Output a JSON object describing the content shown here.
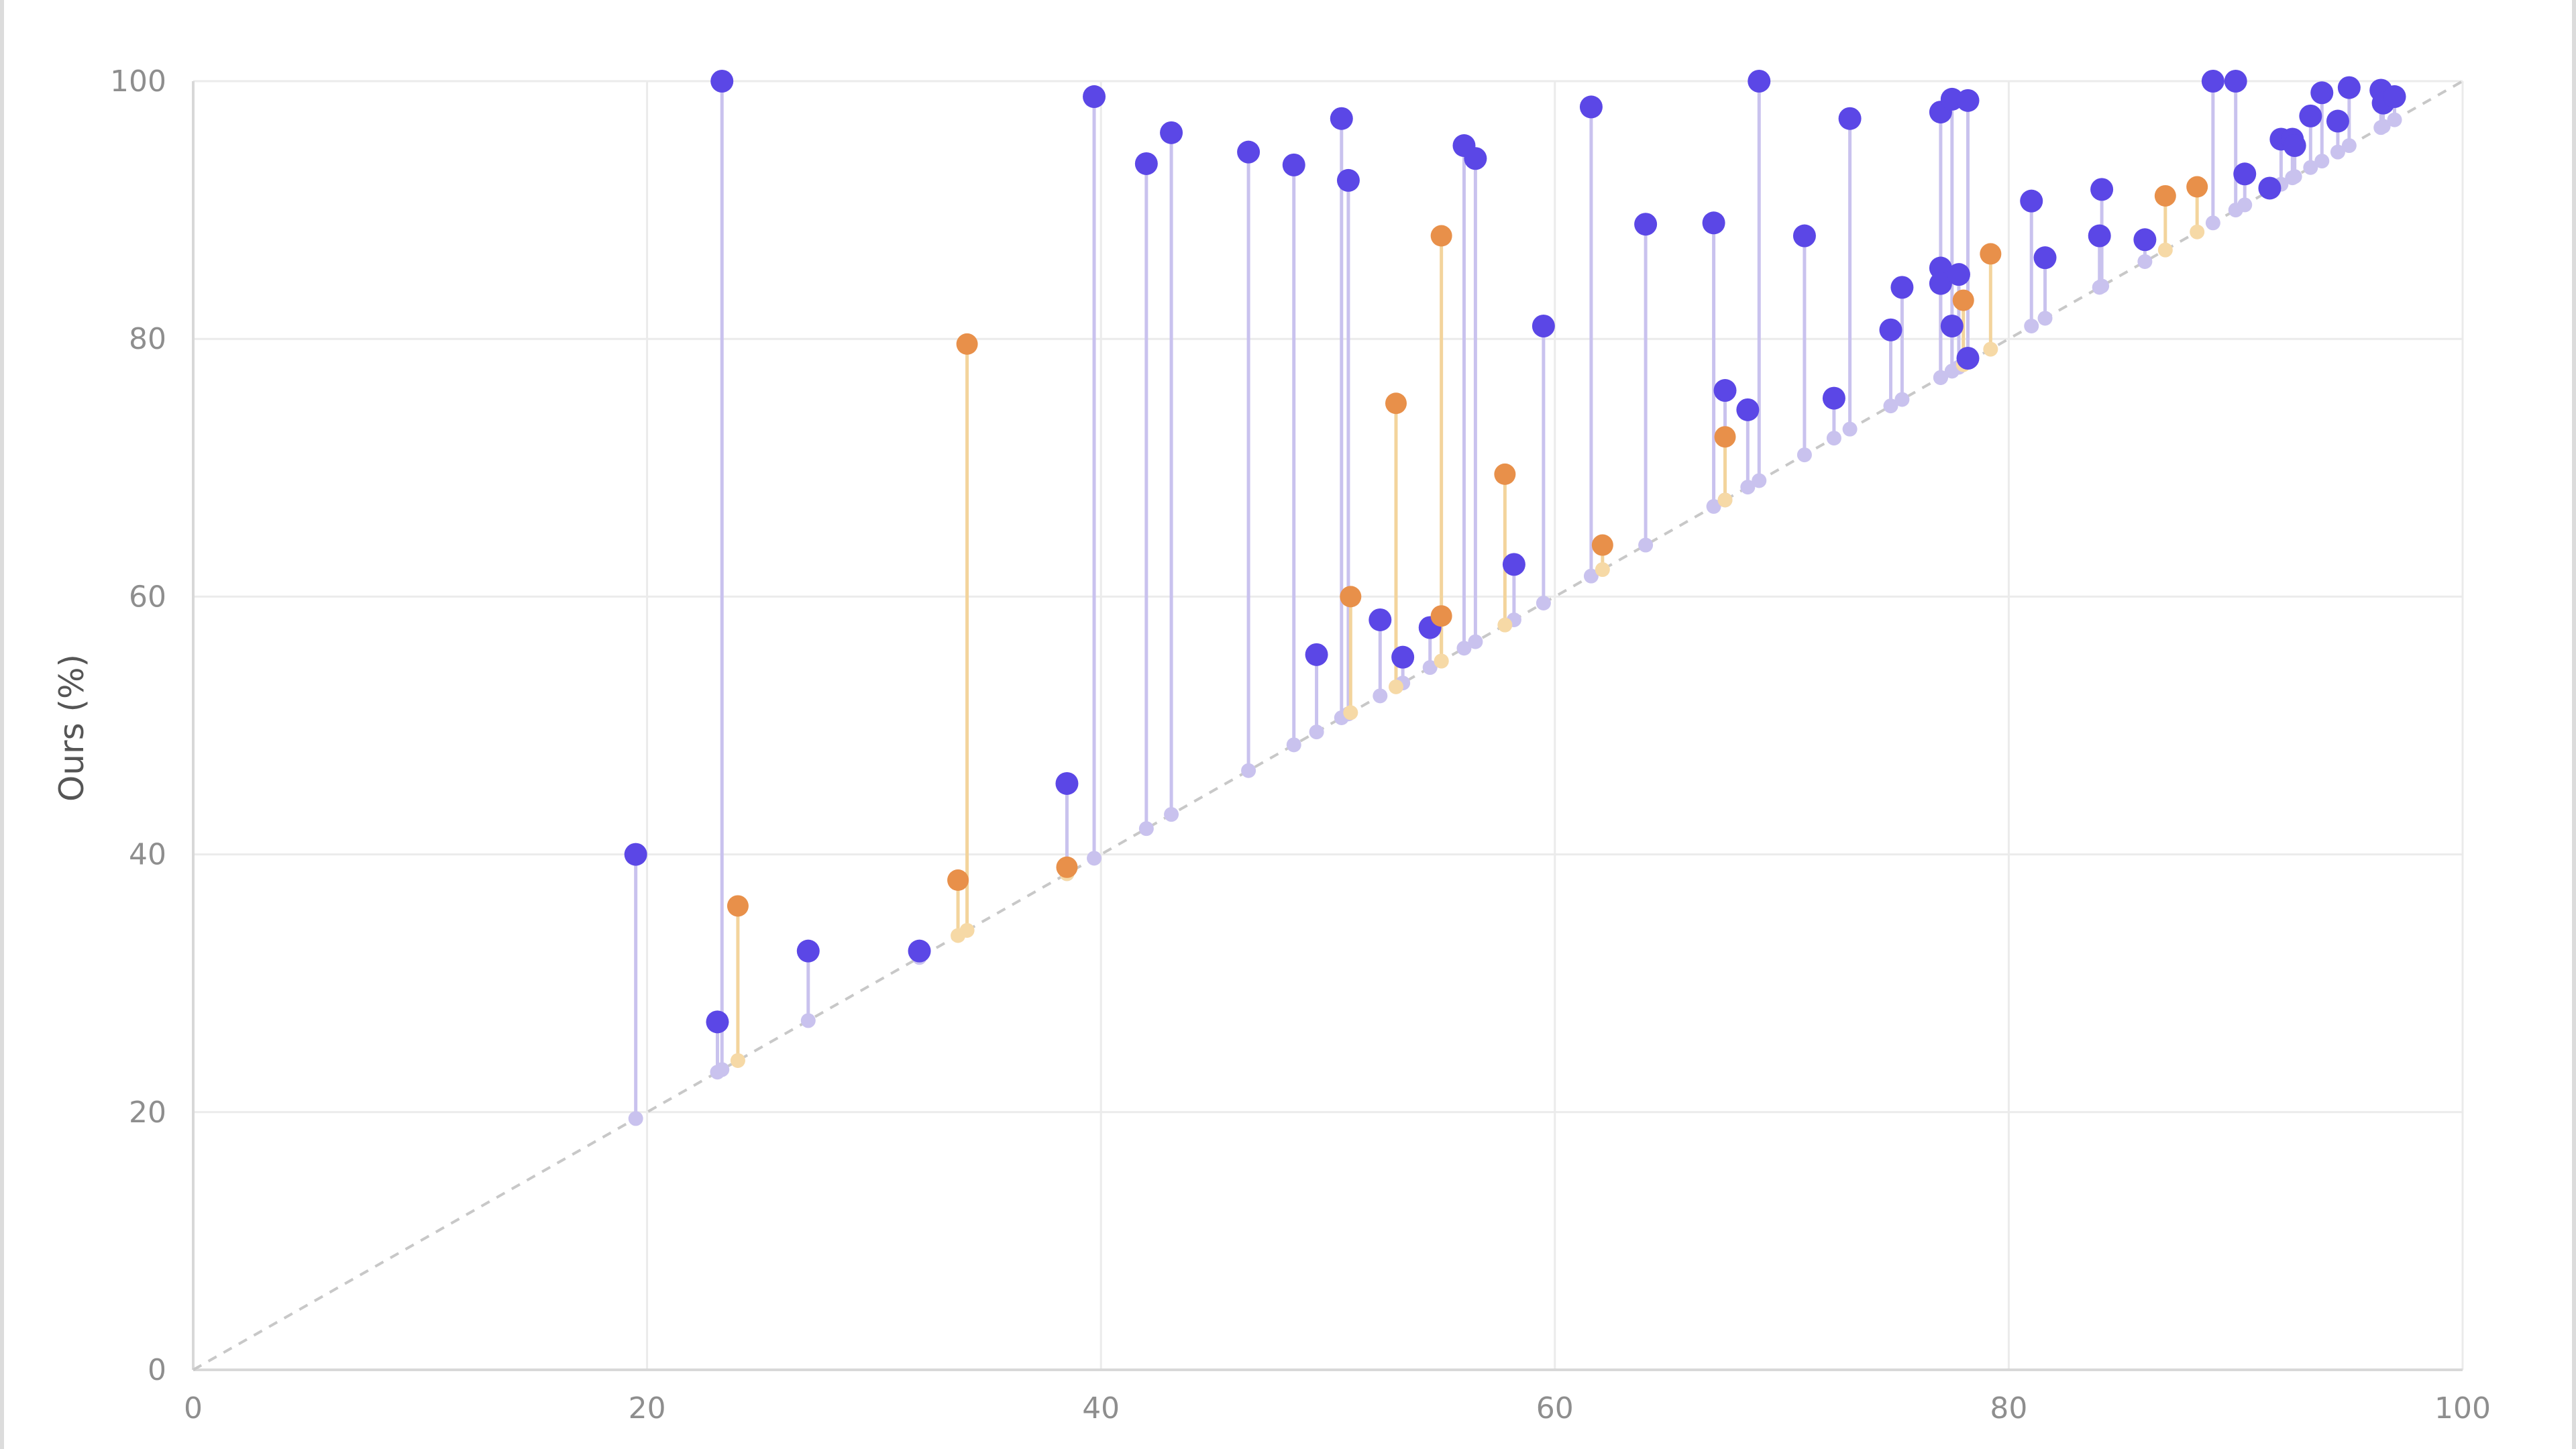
{
  "chart_data": {
    "type": "scatter",
    "title": "",
    "xlabel": "",
    "ylabel": "Ours (%)",
    "xlim": [
      0,
      100
    ],
    "ylim": [
      0,
      100
    ],
    "x_ticks": [
      0,
      20,
      40,
      60,
      80,
      100
    ],
    "y_ticks": [
      0,
      20,
      40,
      60,
      80,
      100
    ],
    "grid": true,
    "reference_line": "y = x",
    "colors": {
      "blue_point": "#5b47e6",
      "blue_base": "#c9c2ee",
      "blue_stem": "#c9c2ee",
      "orange_point": "#e8904a",
      "orange_base": "#f6d9a6",
      "orange_stem": "#f3d49c",
      "diagonal": "#c8c8c8",
      "grid": "#ebebeb"
    },
    "series": [
      {
        "key": "blue",
        "points": [
          {
            "x": 19.5,
            "y": 40.0
          },
          {
            "x": 23.1,
            "y": 27.0
          },
          {
            "x": 23.3,
            "y": 100.0
          },
          {
            "x": 27.1,
            "y": 32.5
          },
          {
            "x": 32.0,
            "y": 32.5
          },
          {
            "x": 38.5,
            "y": 45.5
          },
          {
            "x": 39.7,
            "y": 98.8
          },
          {
            "x": 42.0,
            "y": 93.6
          },
          {
            "x": 43.1,
            "y": 96.0
          },
          {
            "x": 46.5,
            "y": 94.5
          },
          {
            "x": 48.5,
            "y": 93.5
          },
          {
            "x": 49.5,
            "y": 55.5
          },
          {
            "x": 50.6,
            "y": 97.1
          },
          {
            "x": 50.9,
            "y": 92.3
          },
          {
            "x": 52.3,
            "y": 58.2
          },
          {
            "x": 53.3,
            "y": 55.3
          },
          {
            "x": 54.5,
            "y": 57.6
          },
          {
            "x": 56.0,
            "y": 95.0
          },
          {
            "x": 56.5,
            "y": 94.0
          },
          {
            "x": 58.2,
            "y": 62.5
          },
          {
            "x": 59.5,
            "y": 81.0
          },
          {
            "x": 61.6,
            "y": 98.0
          },
          {
            "x": 64.0,
            "y": 88.9
          },
          {
            "x": 67.0,
            "y": 89.0
          },
          {
            "x": 67.5,
            "y": 76.0
          },
          {
            "x": 68.5,
            "y": 74.5
          },
          {
            "x": 69.0,
            "y": 100.0
          },
          {
            "x": 71.0,
            "y": 88.0
          },
          {
            "x": 72.3,
            "y": 75.4
          },
          {
            "x": 73.0,
            "y": 97.1
          },
          {
            "x": 74.8,
            "y": 80.7
          },
          {
            "x": 75.3,
            "y": 84.0
          },
          {
            "x": 77.0,
            "y": 85.5
          },
          {
            "x": 77.0,
            "y": 84.3
          },
          {
            "x": 77.0,
            "y": 97.6
          },
          {
            "x": 77.5,
            "y": 98.6
          },
          {
            "x": 77.5,
            "y": 81.0
          },
          {
            "x": 77.8,
            "y": 85.0
          },
          {
            "x": 78.2,
            "y": 98.5
          },
          {
            "x": 78.2,
            "y": 78.5
          },
          {
            "x": 81.0,
            "y": 90.7
          },
          {
            "x": 81.6,
            "y": 86.3
          },
          {
            "x": 84.0,
            "y": 88.0
          },
          {
            "x": 84.1,
            "y": 91.6
          },
          {
            "x": 86.0,
            "y": 87.7
          },
          {
            "x": 89.0,
            "y": 100.0
          },
          {
            "x": 90.0,
            "y": 100.0
          },
          {
            "x": 90.4,
            "y": 92.8
          },
          {
            "x": 91.5,
            "y": 91.7
          },
          {
            "x": 92.0,
            "y": 95.5
          },
          {
            "x": 92.5,
            "y": 95.5
          },
          {
            "x": 92.6,
            "y": 95.0
          },
          {
            "x": 93.3,
            "y": 97.3
          },
          {
            "x": 93.8,
            "y": 99.1
          },
          {
            "x": 94.5,
            "y": 96.9
          },
          {
            "x": 95.0,
            "y": 99.5
          },
          {
            "x": 96.4,
            "y": 99.3
          },
          {
            "x": 96.5,
            "y": 98.3
          },
          {
            "x": 97.0,
            "y": 98.8
          }
        ]
      },
      {
        "key": "orange",
        "points": [
          {
            "x": 24.0,
            "y": 36.0
          },
          {
            "x": 33.7,
            "y": 38.0
          },
          {
            "x": 34.1,
            "y": 79.6
          },
          {
            "x": 38.5,
            "y": 39.0
          },
          {
            "x": 51.0,
            "y": 60.0
          },
          {
            "x": 53.0,
            "y": 75.0
          },
          {
            "x": 55.0,
            "y": 58.5
          },
          {
            "x": 55.0,
            "y": 88.0
          },
          {
            "x": 57.8,
            "y": 69.5
          },
          {
            "x": 62.1,
            "y": 64.0
          },
          {
            "x": 67.5,
            "y": 72.4
          },
          {
            "x": 78.0,
            "y": 83.0
          },
          {
            "x": 79.2,
            "y": 86.6
          },
          {
            "x": 86.9,
            "y": 91.1
          },
          {
            "x": 88.3,
            "y": 91.8
          }
        ]
      }
    ]
  }
}
